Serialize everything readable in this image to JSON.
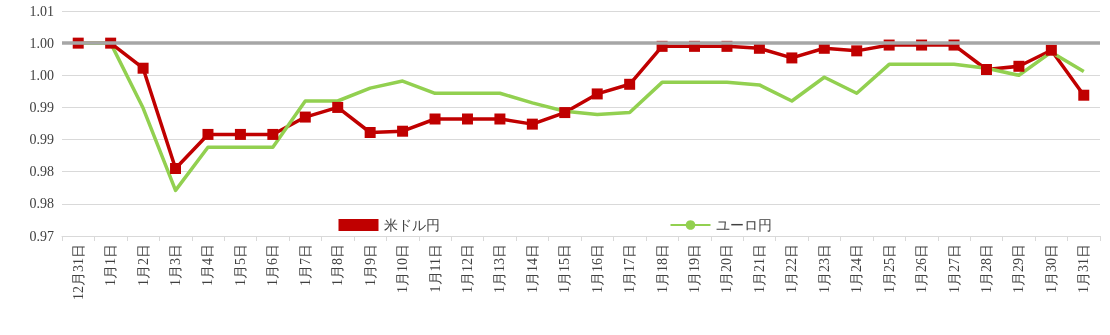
{
  "chart_data": {
    "type": "line",
    "categories": [
      "12月31日",
      "1月1日",
      "1月2日",
      "1月3日",
      "1月4日",
      "1月5日",
      "1月6日",
      "1月7日",
      "1月8日",
      "1月9日",
      "1月10日",
      "1月11日",
      "1月12日",
      "1月13日",
      "1月14日",
      "1月15日",
      "1月16日",
      "1月17日",
      "1月18日",
      "1月19日",
      "1月20日",
      "1月21日",
      "1月22日",
      "1月23日",
      "1月24日",
      "1月25日",
      "1月26日",
      "1月27日",
      "1月28日",
      "1月29日",
      "1月30日",
      "1月31日"
    ],
    "series": [
      {
        "name": "米ドル円",
        "color": "#c00000",
        "marker": "square",
        "values": [
          1.0,
          1.0,
          0.9961,
          0.9805,
          0.9858,
          0.9858,
          0.9858,
          0.9885,
          0.99,
          0.9861,
          0.9863,
          0.9882,
          0.9882,
          0.9882,
          0.9874,
          0.9892,
          0.9921,
          0.9936,
          0.9995,
          0.9995,
          0.9995,
          0.9992,
          0.9977,
          0.9992,
          0.9988,
          0.9997,
          0.9997,
          0.9997,
          0.9959,
          0.9964,
          0.9989,
          0.9919
        ]
      },
      {
        "name": "ユーロ円",
        "color": "#92d050",
        "marker": "none",
        "values": [
          1.0,
          1.0,
          0.9899,
          0.9771,
          0.9838,
          0.9838,
          0.9838,
          0.991,
          0.991,
          0.993,
          0.9941,
          0.9922,
          0.9922,
          0.9922,
          0.9907,
          0.9894,
          0.9889,
          0.9892,
          0.9939,
          0.9939,
          0.9939,
          0.9935,
          0.991,
          0.9947,
          0.9922,
          0.9967,
          0.9967,
          0.9967,
          0.9961,
          0.995,
          0.9986,
          0.9956
        ]
      }
    ],
    "ylim": [
      0.97,
      1.005
    ],
    "yticks": [
      {
        "value": 0.97,
        "label": "0.97"
      },
      {
        "value": 0.975,
        "label": "0.98"
      },
      {
        "value": 0.98,
        "label": "0.98"
      },
      {
        "value": 0.985,
        "label": "0.99"
      },
      {
        "value": 0.99,
        "label": "0.99"
      },
      {
        "value": 0.995,
        "label": "1.00"
      },
      {
        "value": 1.0,
        "label": "1.00"
      },
      {
        "value": 1.005,
        "label": "1.01"
      }
    ],
    "ref_lines": [
      {
        "axis": "y",
        "value": 1.0,
        "label": null,
        "color": "#a6a6a6"
      }
    ],
    "grid": "y",
    "legend": "bottom"
  }
}
